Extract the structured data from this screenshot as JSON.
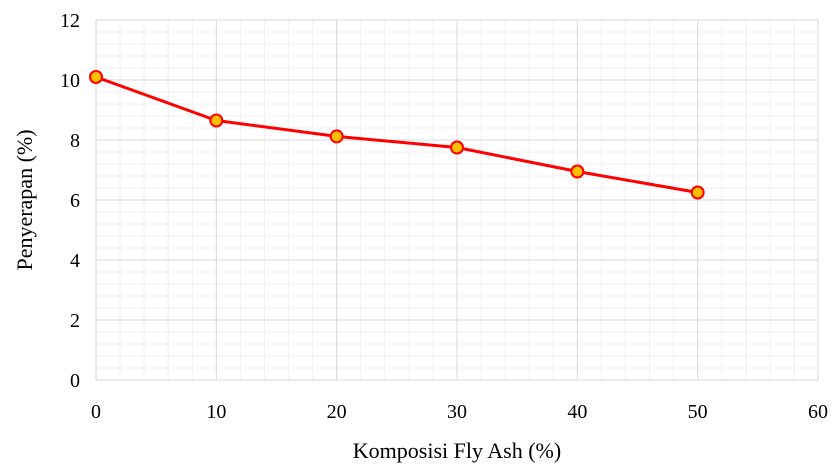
{
  "chart_data": {
    "type": "line",
    "title": "",
    "xlabel": "Komposisi Fly Ash (%)",
    "ylabel": "Penyerapan (%)",
    "xlim": [
      0,
      60
    ],
    "ylim": [
      0,
      12
    ],
    "x_ticks": [
      0,
      10,
      20,
      30,
      40,
      50,
      60
    ],
    "y_ticks": [
      0,
      2,
      4,
      6,
      8,
      10,
      12
    ],
    "grid": "major and minor",
    "legend": "none",
    "series": [
      {
        "x": [
          0,
          10,
          20,
          30,
          40,
          50
        ],
        "y": [
          10.1,
          8.65,
          8.12,
          7.75,
          6.95,
          6.25
        ],
        "line_color": "#ff0000",
        "marker_fill": "#ffc000",
        "marker_edge": "#ff0000"
      }
    ]
  }
}
